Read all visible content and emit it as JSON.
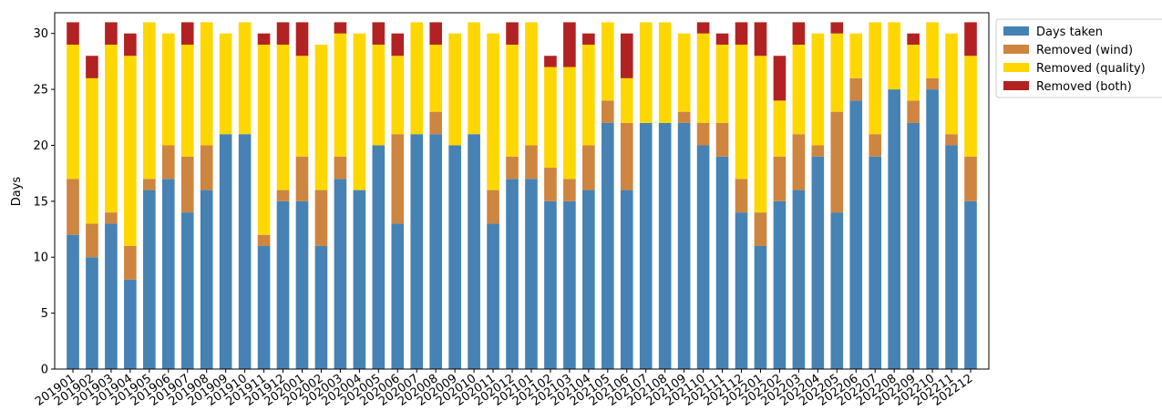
{
  "chart_data": {
    "type": "stacked_bar",
    "y_label": "Days",
    "categories": [
      "201901",
      "201902",
      "201903",
      "201904",
      "201905",
      "201906",
      "201907",
      "201908",
      "201909",
      "201910",
      "201911",
      "201912",
      "202001",
      "202002",
      "202003",
      "202004",
      "202005",
      "202006",
      "202007",
      "202008",
      "202009",
      "202010",
      "202011",
      "202012",
      "202101",
      "202102",
      "202103",
      "202104",
      "202105",
      "202106",
      "202107",
      "202108",
      "202109",
      "202110",
      "202111",
      "202112",
      "202201",
      "202202",
      "202203",
      "202204",
      "202205",
      "202206",
      "202207",
      "202208",
      "202209",
      "202210",
      "202211",
      "202212"
    ],
    "series": [
      {
        "name": "Days taken",
        "color": "#4682b4",
        "values": [
          12,
          10,
          13,
          8,
          16,
          17,
          14,
          16,
          21,
          21,
          11,
          15,
          15,
          11,
          17,
          16,
          20,
          13,
          21,
          21,
          20,
          21,
          13,
          17,
          17,
          15,
          15,
          16,
          22,
          16,
          22,
          22,
          22,
          20,
          19,
          14,
          11,
          15,
          16,
          19,
          14,
          24,
          19,
          25,
          22,
          25,
          20,
          15
        ]
      },
      {
        "name": "Removed (wind)",
        "color": "#cd853f",
        "values": [
          5,
          3,
          1,
          3,
          1,
          3,
          5,
          4,
          0,
          0,
          1,
          1,
          4,
          5,
          2,
          0,
          0,
          8,
          0,
          2,
          0,
          0,
          3,
          2,
          3,
          3,
          2,
          4,
          2,
          6,
          0,
          0,
          1,
          2,
          3,
          3,
          3,
          4,
          5,
          1,
          9,
          2,
          2,
          0,
          2,
          1,
          1,
          4
        ]
      },
      {
        "name": "Removed (quality)",
        "color": "#ffd700",
        "values": [
          12,
          13,
          15,
          17,
          14,
          10,
          10,
          11,
          9,
          10,
          17,
          13,
          9,
          13,
          11,
          14,
          9,
          7,
          10,
          6,
          10,
          10,
          14,
          10,
          11,
          9,
          10,
          9,
          7,
          4,
          9,
          9,
          7,
          8,
          7,
          12,
          14,
          5,
          8,
          10,
          7,
          4,
          10,
          6,
          5,
          5,
          9,
          9
        ]
      },
      {
        "name": "Removed (both)",
        "color": "#b22222",
        "values": [
          2,
          2,
          2,
          2,
          0,
          0,
          2,
          0,
          0,
          0,
          1,
          2,
          3,
          0,
          1,
          0,
          2,
          2,
          0,
          2,
          0,
          0,
          0,
          2,
          0,
          1,
          4,
          1,
          0,
          4,
          0,
          0,
          0,
          1,
          1,
          2,
          3,
          4,
          2,
          0,
          1,
          0,
          0,
          0,
          1,
          0,
          0,
          3
        ]
      }
    ],
    "ylim": [
      0,
      31.85
    ],
    "yticks": [
      0,
      5,
      10,
      15,
      20,
      25,
      30
    ],
    "legend": "outside-upper-right"
  }
}
